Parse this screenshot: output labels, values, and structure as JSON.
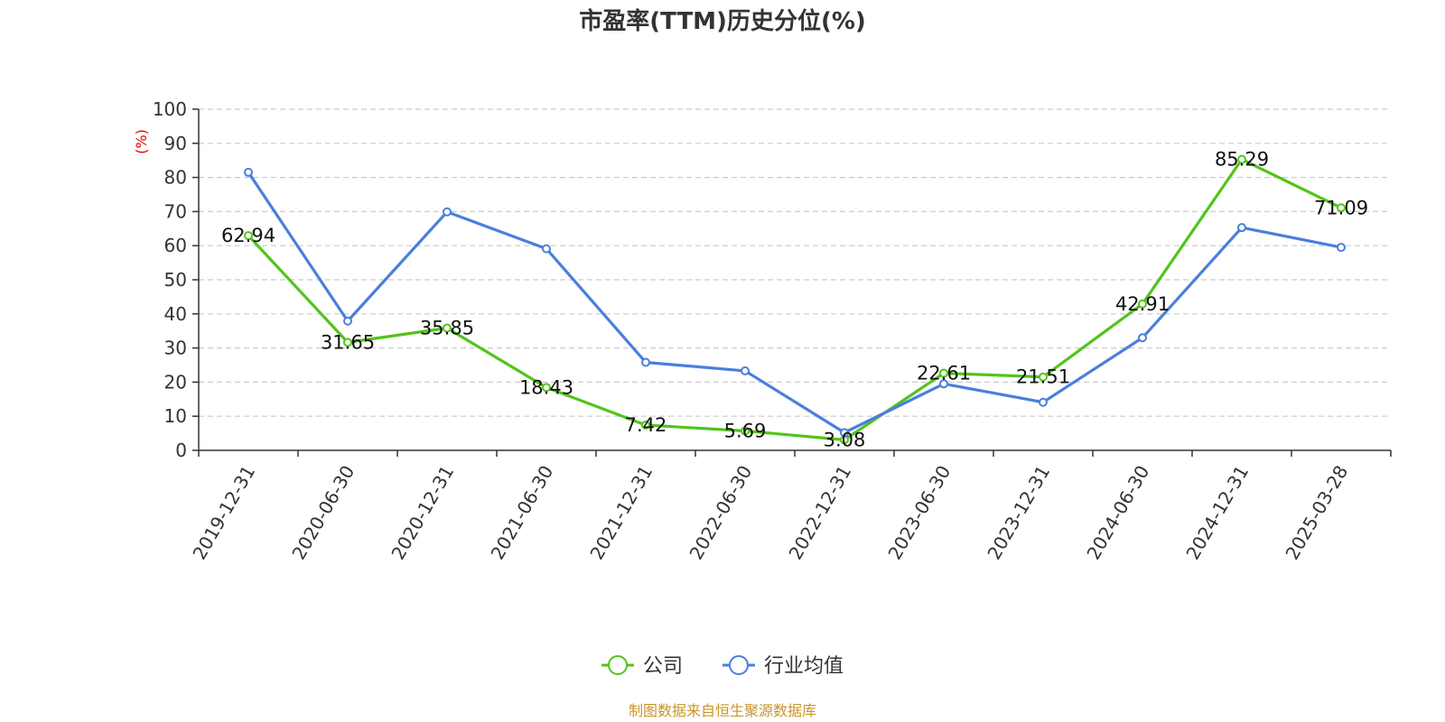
{
  "chart_data": {
    "type": "line",
    "title": "市盈率(TTM)历史分位(%)",
    "ylabel": "(%)",
    "xlabel": "",
    "ylim": [
      0,
      100
    ],
    "yticks": [
      0,
      10,
      20,
      30,
      40,
      50,
      60,
      70,
      80,
      90,
      100
    ],
    "categories": [
      "2019-12-31",
      "2020-06-30",
      "2020-12-31",
      "2021-06-30",
      "2021-12-31",
      "2022-06-30",
      "2022-12-31",
      "2023-06-30",
      "2023-12-31",
      "2024-06-30",
      "2024-12-31",
      "2025-03-28"
    ],
    "grid": true,
    "legend_position": "bottom",
    "series": [
      {
        "name": "公司",
        "color": "#52c41a",
        "values": [
          62.94,
          31.65,
          35.85,
          18.43,
          7.42,
          5.69,
          3.08,
          22.61,
          21.51,
          42.91,
          85.29,
          71.09
        ],
        "labels": [
          "62.94",
          "31.65",
          "35.85",
          "18.43",
          "7.42",
          "5.69",
          "3.08",
          "22.61",
          "21.51",
          "42.91",
          "85.29",
          "71.09"
        ]
      },
      {
        "name": "行业均值",
        "color": "#4a7fdc",
        "values": [
          81.5,
          37.9,
          69.9,
          59.1,
          25.8,
          23.3,
          5.2,
          19.5,
          14.1,
          33.0,
          65.3,
          59.5
        ]
      }
    ],
    "source": "制图数据来自恒生聚源数据库",
    "source_color": "#c8952a",
    "unit_color": "#e60000"
  }
}
